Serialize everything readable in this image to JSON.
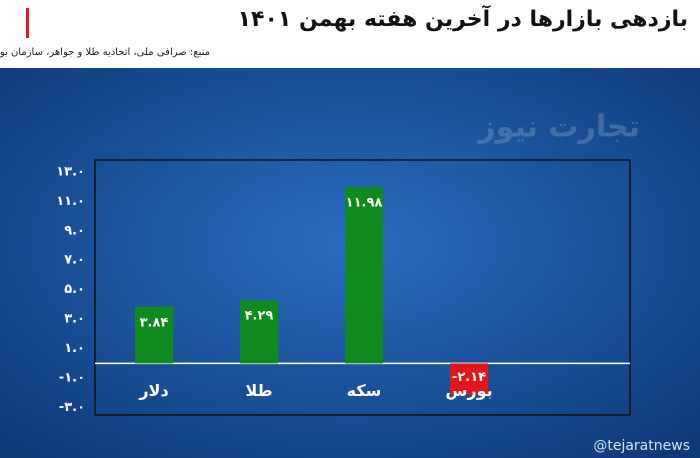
{
  "chart_data": {
    "type": "bar",
    "title": "بازدهی بازارها در آخرین هفته بهمن ۱۴۰۱",
    "subtitle": "منبع: صرافی ملی، اتحادیه طلا و جواهر، سازمان بورس",
    "categories": [
      "دلار",
      "طلا",
      "سکه",
      "بورس"
    ],
    "values": [
      3.84,
      4.29,
      11.98,
      -2.14
    ],
    "value_labels": [
      "۳.۸۴",
      "۴.۲۹",
      "۱۱.۹۸",
      "-۲.۱۴"
    ],
    "colors": [
      "#0f8a1c",
      "#0f8a1c",
      "#0f8a1c",
      "#e0161b"
    ],
    "ylim": [
      -3.5,
      13.8
    ],
    "yticks": [
      {
        "value": 13,
        "label": "۱۳.۰"
      },
      {
        "value": 11,
        "label": "۱۱.۰"
      },
      {
        "value": 9,
        "label": "۹.۰"
      },
      {
        "value": 7,
        "label": "۷.۰"
      },
      {
        "value": 5,
        "label": "۵.۰"
      },
      {
        "value": 3,
        "label": "۳.۰"
      },
      {
        "value": 1,
        "label": "۱.۰"
      },
      {
        "value": -1,
        "label": "-۱.۰"
      },
      {
        "value": -3,
        "label": "-۳.۰"
      }
    ],
    "grid": false
  },
  "watermark": "تجارت نیوز",
  "handle": "@tejaratnews"
}
